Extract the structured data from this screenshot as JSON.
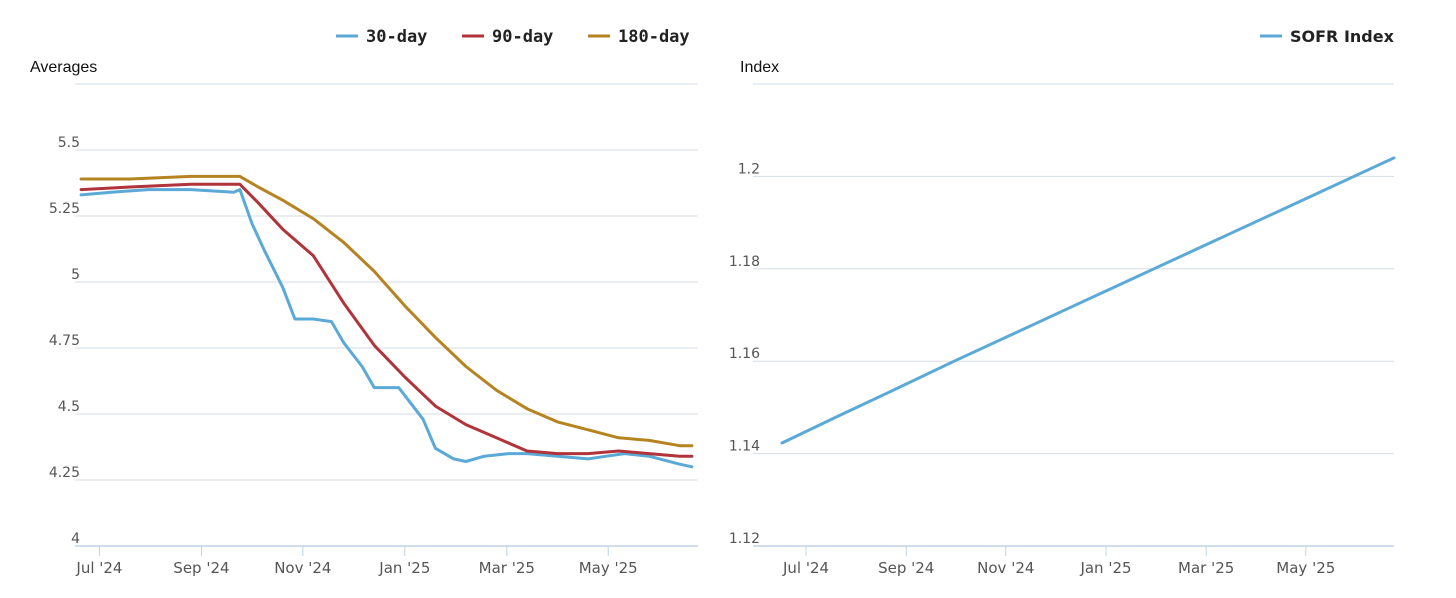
{
  "chart_data": [
    {
      "type": "line",
      "ylabel": "Averages",
      "ylim": [
        4,
        5.75
      ],
      "yticks": [
        4,
        4.25,
        4.5,
        4.75,
        5,
        5.25,
        5.5
      ],
      "yticklabels": [
        "4",
        "4.25",
        "4.5",
        "4.75",
        "5",
        "5.25",
        "5.5"
      ],
      "xlim": [
        2024.46,
        2025.48
      ],
      "xticks": [
        2024.5,
        2024.667,
        2024.833,
        2025.0,
        2025.167,
        2025.333
      ],
      "xticklabels": [
        "Jul '24",
        "Sep '24",
        "Nov '24",
        "Jan '25",
        "Mar '25",
        "May '25"
      ],
      "legend_position": "top-right",
      "series": [
        {
          "name": "30-day",
          "color": "#5ba9d6",
          "x": [
            2024.47,
            2024.52,
            2024.58,
            2024.65,
            2024.72,
            2024.73,
            2024.75,
            2024.77,
            2024.8,
            2024.82,
            2024.85,
            2024.88,
            2024.9,
            2024.93,
            2024.95,
            2024.97,
            2024.99,
            2025.01,
            2025.03,
            2025.05,
            2025.08,
            2025.1,
            2025.13,
            2025.17,
            2025.2,
            2025.25,
            2025.3,
            2025.33,
            2025.36,
            2025.4,
            2025.45,
            2025.47
          ],
          "y": [
            5.33,
            5.34,
            5.35,
            5.35,
            5.34,
            5.35,
            5.22,
            5.12,
            4.98,
            4.86,
            4.86,
            4.85,
            4.77,
            4.68,
            4.6,
            4.6,
            4.6,
            4.54,
            4.48,
            4.37,
            4.33,
            4.32,
            4.34,
            4.35,
            4.35,
            4.34,
            4.33,
            4.34,
            4.35,
            4.34,
            4.31,
            4.3
          ]
        },
        {
          "name": "90-day",
          "color": "#b0343a",
          "x": [
            2024.47,
            2024.55,
            2024.65,
            2024.73,
            2024.76,
            2024.8,
            2024.85,
            2024.9,
            2024.95,
            2025.0,
            2025.05,
            2025.1,
            2025.15,
            2025.2,
            2025.25,
            2025.3,
            2025.35,
            2025.4,
            2025.45,
            2025.47
          ],
          "y": [
            5.35,
            5.36,
            5.37,
            5.37,
            5.3,
            5.2,
            5.1,
            4.92,
            4.76,
            4.64,
            4.53,
            4.46,
            4.41,
            4.36,
            4.35,
            4.35,
            4.36,
            4.35,
            4.34,
            4.34
          ]
        },
        {
          "name": "180-day",
          "color": "#b58320",
          "x": [
            2024.47,
            2024.55,
            2024.65,
            2024.73,
            2024.76,
            2024.8,
            2024.85,
            2024.9,
            2024.95,
            2025.0,
            2025.05,
            2025.1,
            2025.15,
            2025.2,
            2025.25,
            2025.3,
            2025.35,
            2025.4,
            2025.45,
            2025.47
          ],
          "y": [
            5.39,
            5.39,
            5.4,
            5.4,
            5.36,
            5.31,
            5.24,
            5.15,
            5.04,
            4.91,
            4.79,
            4.68,
            4.59,
            4.52,
            4.47,
            4.44,
            4.41,
            4.4,
            4.38,
            4.38
          ]
        }
      ]
    },
    {
      "type": "line",
      "ylabel": "Index",
      "ylim": [
        1.12,
        1.22
      ],
      "yticks": [
        1.12,
        1.14,
        1.16,
        1.18,
        1.2
      ],
      "yticklabels": [
        "1.12",
        "1.14",
        "1.16",
        "1.18",
        "1.2"
      ],
      "xlim": [
        2024.46,
        2025.48
      ],
      "xticks": [
        2024.5,
        2024.667,
        2024.833,
        2025.0,
        2025.167,
        2025.333
      ],
      "xticklabels": [
        "Jul '24",
        "Sep '24",
        "Nov '24",
        "Jan '25",
        "Mar '25",
        "May '25"
      ],
      "legend_position": "top-right",
      "series": [
        {
          "name": "SOFR Index",
          "color": "#5ba9d6",
          "x": [
            2024.46,
            2024.55,
            2024.65,
            2024.75,
            2024.85,
            2024.95,
            2025.05,
            2025.15,
            2025.25,
            2025.35,
            2025.45,
            2025.48
          ],
          "y": [
            1.1423,
            1.1479,
            1.154,
            1.1602,
            1.1662,
            1.1722,
            1.1782,
            1.1842,
            1.1902,
            1.1962,
            1.2022,
            1.204
          ]
        }
      ]
    }
  ]
}
